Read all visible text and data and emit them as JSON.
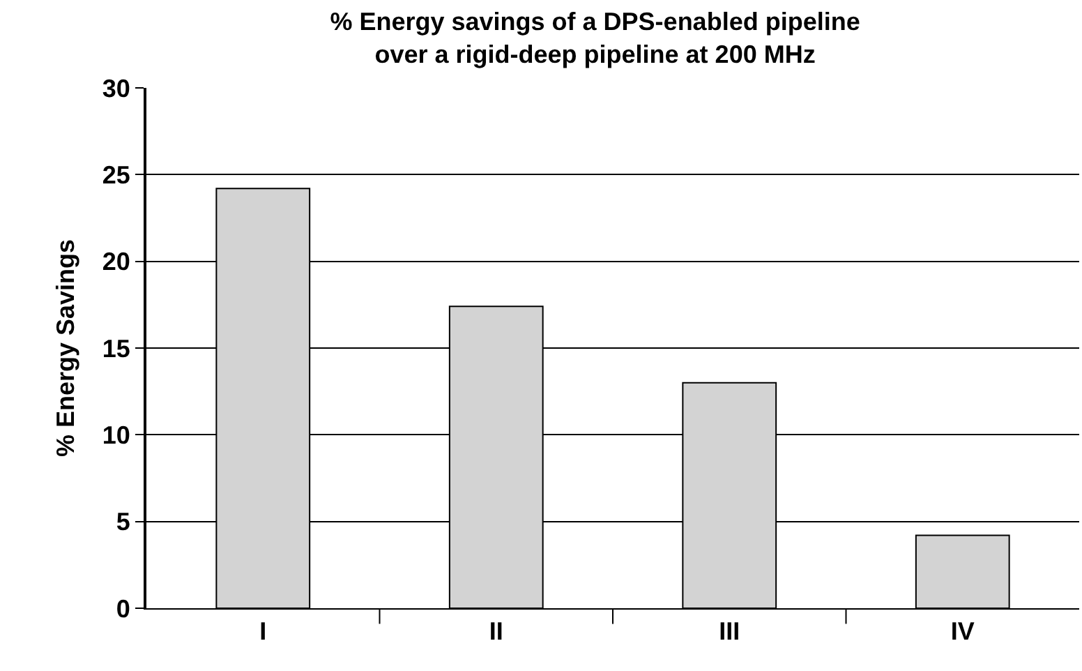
{
  "chart_data": {
    "type": "bar",
    "title": "% Energy savings of a DPS-enabled pipeline\nover a rigid-deep pipeline at 200 MHz",
    "ylabel": "% Energy Savings",
    "categories": [
      "I",
      "II",
      "III",
      "IV"
    ],
    "values": [
      24.2,
      17.4,
      13.0,
      4.2
    ],
    "color": "#d3d3d3",
    "ylim": [
      0,
      30
    ],
    "yticks": [
      0,
      5,
      10,
      15,
      20,
      25,
      30
    ],
    "grid": "y",
    "legend": false
  }
}
